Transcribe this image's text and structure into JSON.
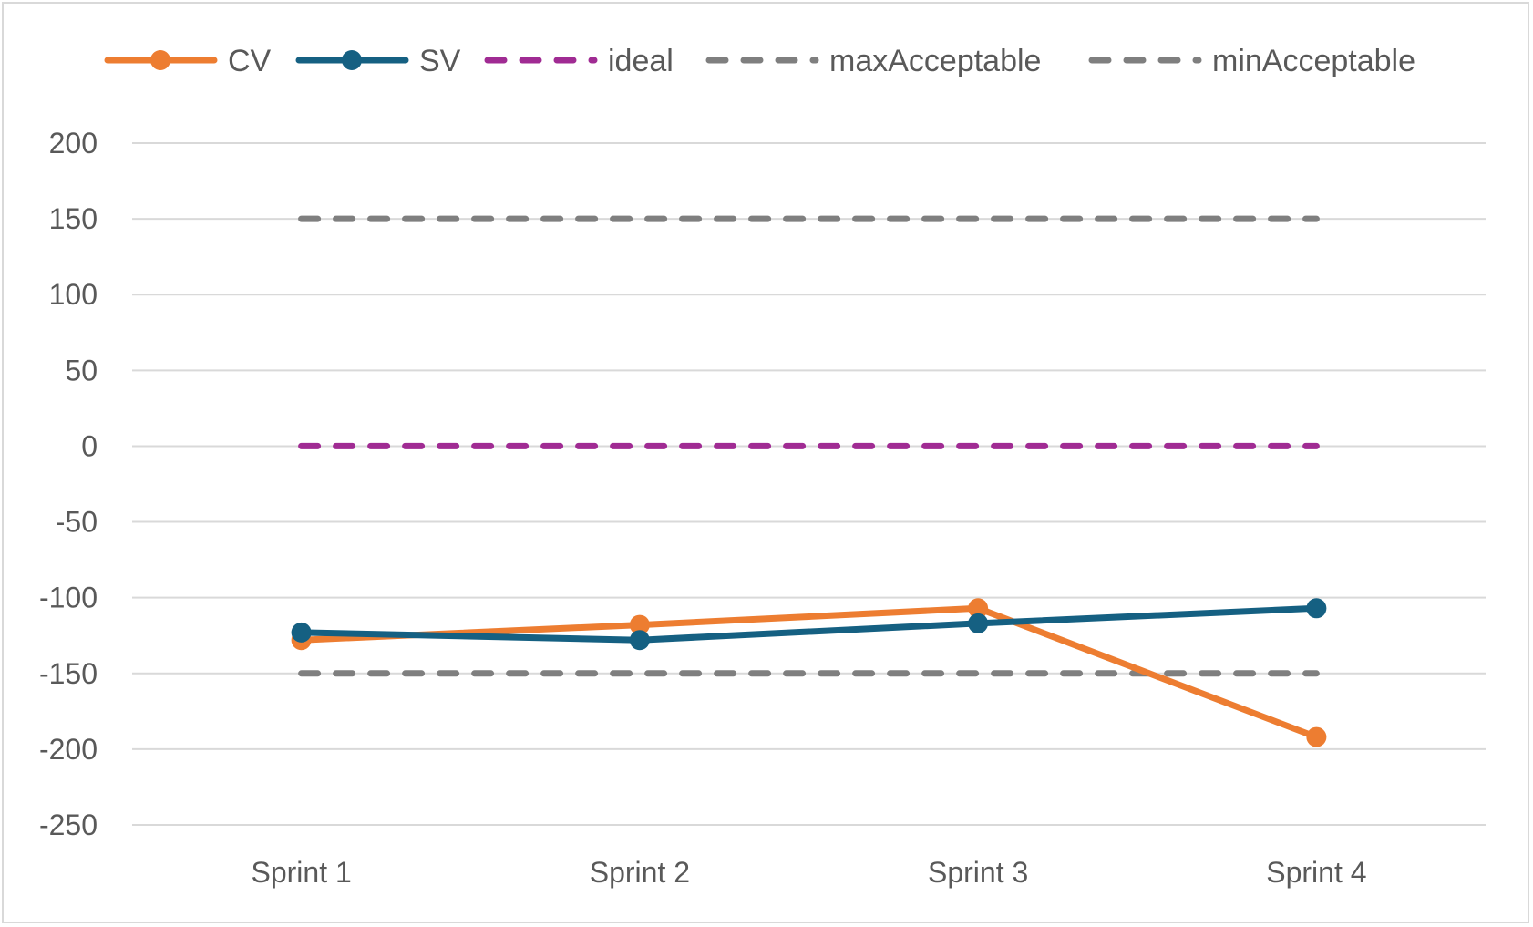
{
  "chart_data": {
    "type": "line",
    "title": "",
    "xlabel": "",
    "ylabel": "",
    "categories": [
      "Sprint 1",
      "Sprint 2",
      "Sprint 3",
      "Sprint 4"
    ],
    "ylim": [
      -250,
      200
    ],
    "yticks": [
      200,
      150,
      100,
      50,
      0,
      -50,
      -100,
      -150,
      -200,
      -250
    ],
    "ytick_labels": [
      "200",
      "150",
      "100",
      "50",
      "0",
      "-50",
      "-100",
      "-150",
      "-200",
      "-250"
    ],
    "grid": true,
    "legend_position": "top",
    "series": [
      {
        "name": "CV",
        "values": [
          -128,
          -118,
          -107,
          -192
        ],
        "color": "#ed7d31",
        "style": "solid",
        "markers": true
      },
      {
        "name": "SV",
        "values": [
          -123,
          -128,
          -117,
          -107
        ],
        "color": "#156082",
        "style": "solid",
        "markers": true
      },
      {
        "name": "ideal",
        "values": [
          0,
          0,
          0,
          0
        ],
        "color": "#a02b93",
        "style": "dashed",
        "markers": false
      },
      {
        "name": "maxAcceptable",
        "values": [
          150,
          150,
          150,
          150
        ],
        "color": "#7f7f7f",
        "style": "dashed",
        "markers": false
      },
      {
        "name": "minAcceptable",
        "values": [
          -150,
          -150,
          -150,
          -150
        ],
        "color": "#7f7f7f",
        "style": "dashed",
        "markers": false
      }
    ]
  }
}
